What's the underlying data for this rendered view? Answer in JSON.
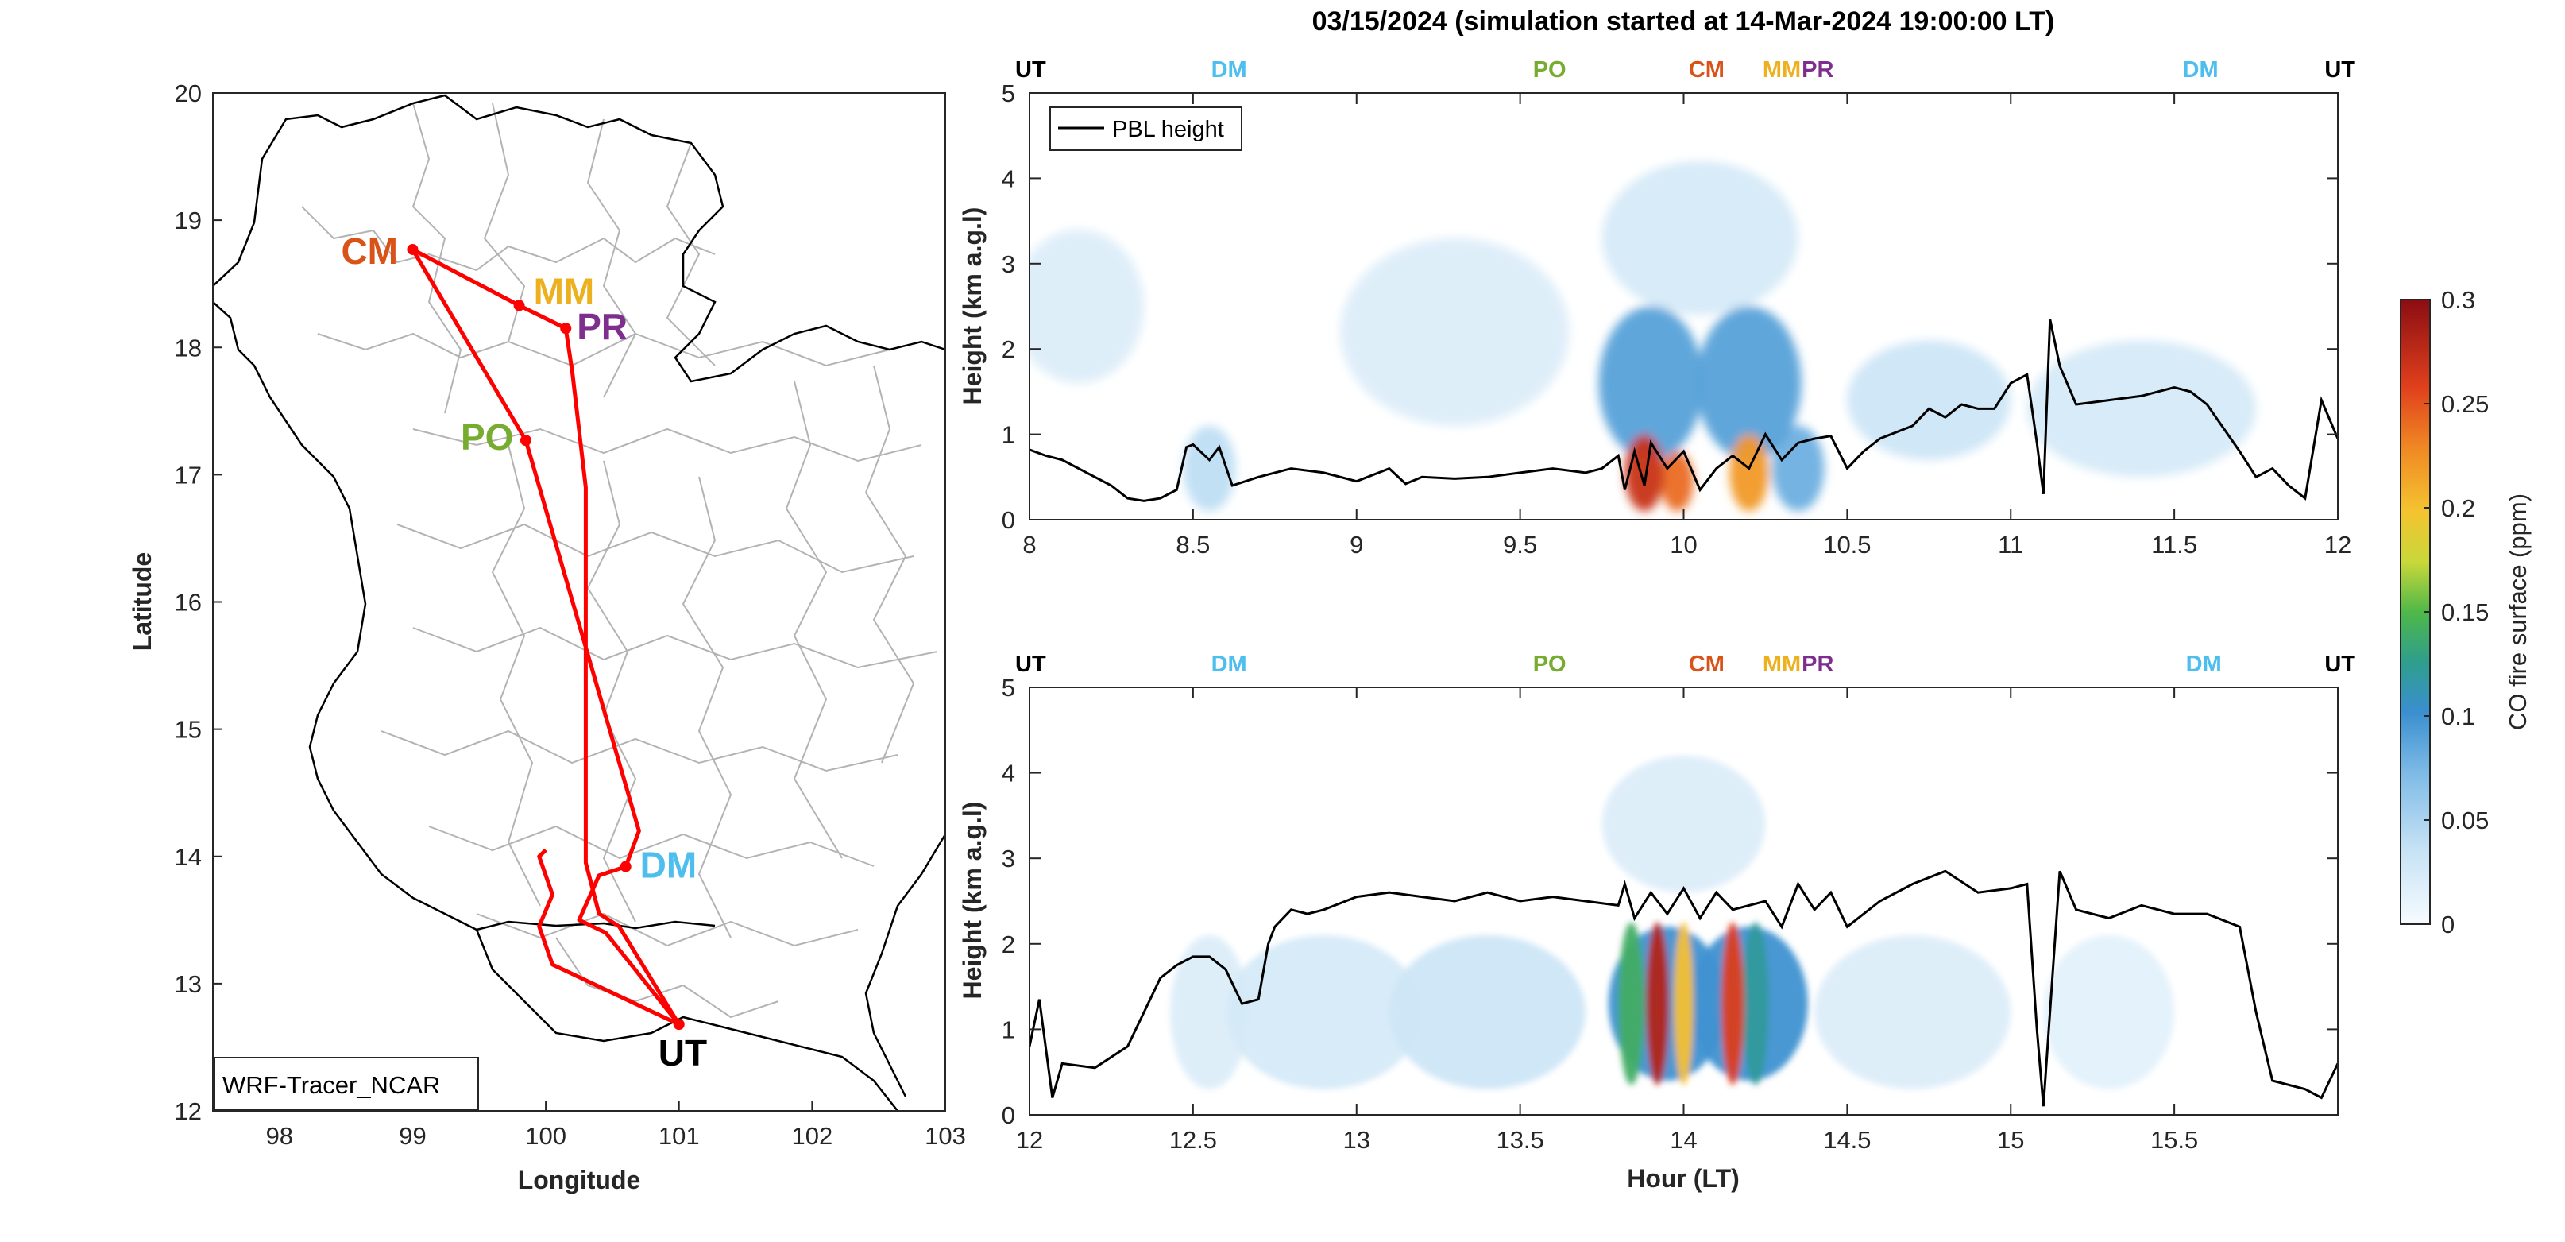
{
  "figure": {
    "title": "03/15/2024 (simulation started at 14-Mar-2024 19:00:00 LT)"
  },
  "colors": {
    "CM": "#d95319",
    "MM": "#edb120",
    "PR": "#7e2f8e",
    "PO": "#77ac30",
    "DM": "#4dbeee",
    "UT": "#000000",
    "route": "#ff0000",
    "borders": "#b3b3b3",
    "coast": "#000000",
    "pbl": "#000000"
  },
  "map": {
    "xlabel": "Longitude",
    "ylabel": "Latitude",
    "xlim": [
      97.5,
      103
    ],
    "ylim": [
      12,
      20
    ],
    "xticks": [
      "98",
      "99",
      "100",
      "101",
      "102",
      "103"
    ],
    "yticks": [
      "12",
      "13",
      "14",
      "15",
      "16",
      "17",
      "18",
      "19",
      "20"
    ],
    "legend_text": "WRF-Tracer_NCAR",
    "sites": [
      {
        "label": "CM",
        "lon": 99.0,
        "lat": 18.77
      },
      {
        "label": "MM",
        "lon": 99.8,
        "lat": 18.33
      },
      {
        "label": "PR",
        "lon": 100.15,
        "lat": 18.15
      },
      {
        "label": "PO",
        "lon": 99.85,
        "lat": 17.27
      },
      {
        "label": "DM",
        "lon": 100.6,
        "lat": 13.92
      },
      {
        "label": "UT",
        "lon": 101.0,
        "lat": 12.68
      }
    ]
  },
  "colorbar": {
    "label": "CO fire surface (ppm)",
    "ticks": [
      "0",
      "0.05",
      "0.1",
      "0.15",
      "0.2",
      "0.25",
      "0.3"
    ],
    "range": [
      0,
      0.3
    ]
  },
  "chart_data": [
    {
      "type": "heatmap",
      "title": "03/15/2024 (simulation started at 14-Mar-2024 19:00:00 LT)",
      "xlabel": "",
      "ylabel": "Height (km a.g.l)",
      "xlim": [
        8,
        12
      ],
      "ylim": [
        0,
        5
      ],
      "xticks": [
        "8",
        "8.5",
        "9",
        "9.5",
        "10",
        "10.5",
        "11",
        "11.5",
        "12"
      ],
      "yticks": [
        "0",
        "1",
        "2",
        "3",
        "4",
        "5"
      ],
      "legend": "PBL height",
      "legend_position": "top-left",
      "site_markers": [
        {
          "label": "UT",
          "x": 8.0
        },
        {
          "label": "DM",
          "x": 8.61
        },
        {
          "label": "PO",
          "x": 9.59
        },
        {
          "label": "CM",
          "x": 10.07
        },
        {
          "label": "MM",
          "x": 10.3
        },
        {
          "label": "PR",
          "x": 10.41
        },
        {
          "label": "DM",
          "x": 11.58
        },
        {
          "label": "UT",
          "x": 12.0
        }
      ],
      "pbl_height": {
        "x": [
          8.0,
          8.05,
          8.1,
          8.15,
          8.2,
          8.25,
          8.3,
          8.35,
          8.4,
          8.45,
          8.48,
          8.5,
          8.55,
          8.58,
          8.62,
          8.7,
          8.8,
          8.9,
          9.0,
          9.1,
          9.15,
          9.2,
          9.3,
          9.4,
          9.5,
          9.6,
          9.7,
          9.75,
          9.8,
          9.82,
          9.85,
          9.88,
          9.9,
          9.95,
          10.0,
          10.05,
          10.1,
          10.15,
          10.2,
          10.25,
          10.3,
          10.35,
          10.4,
          10.45,
          10.5,
          10.55,
          10.6,
          10.7,
          10.75,
          10.8,
          10.85,
          10.9,
          10.95,
          11.0,
          11.05,
          11.08,
          11.1,
          11.12,
          11.15,
          11.2,
          11.3,
          11.4,
          11.5,
          11.55,
          11.6,
          11.7,
          11.75,
          11.8,
          11.85,
          11.9,
          11.95,
          12.0
        ],
        "y": [
          0.82,
          0.75,
          0.7,
          0.6,
          0.5,
          0.4,
          0.25,
          0.22,
          0.25,
          0.35,
          0.85,
          0.88,
          0.7,
          0.85,
          0.4,
          0.5,
          0.6,
          0.55,
          0.45,
          0.6,
          0.42,
          0.5,
          0.48,
          0.5,
          0.55,
          0.6,
          0.55,
          0.6,
          0.75,
          0.35,
          0.8,
          0.4,
          0.9,
          0.6,
          0.8,
          0.35,
          0.6,
          0.75,
          0.6,
          1.0,
          0.7,
          0.9,
          0.95,
          0.98,
          0.6,
          0.8,
          0.95,
          1.1,
          1.3,
          1.2,
          1.35,
          1.3,
          1.3,
          1.6,
          1.7,
          0.9,
          0.3,
          2.35,
          1.8,
          1.35,
          1.4,
          1.45,
          1.55,
          1.5,
          1.35,
          0.8,
          0.5,
          0.6,
          0.4,
          0.25,
          1.4,
          0.95
        ]
      },
      "concentration_blobs": [
        {
          "x": 8.15,
          "y": 2.5,
          "sx": 0.2,
          "sy": 0.9,
          "v": 0.02
        },
        {
          "x": 8.55,
          "y": 0.6,
          "sx": 0.08,
          "sy": 0.5,
          "v": 0.04
        },
        {
          "x": 9.3,
          "y": 2.2,
          "sx": 0.35,
          "sy": 1.1,
          "v": 0.02
        },
        {
          "x": 9.9,
          "y": 1.6,
          "sx": 0.16,
          "sy": 0.9,
          "v": 0.09
        },
        {
          "x": 10.2,
          "y": 1.6,
          "sx": 0.16,
          "sy": 0.9,
          "v": 0.09
        },
        {
          "x": 10.05,
          "y": 3.3,
          "sx": 0.3,
          "sy": 0.9,
          "v": 0.025
        },
        {
          "x": 9.88,
          "y": 0.55,
          "sx": 0.06,
          "sy": 0.45,
          "v": 0.27
        },
        {
          "x": 9.98,
          "y": 0.45,
          "sx": 0.05,
          "sy": 0.35,
          "v": 0.24
        },
        {
          "x": 10.2,
          "y": 0.55,
          "sx": 0.06,
          "sy": 0.45,
          "v": 0.22
        },
        {
          "x": 10.35,
          "y": 0.6,
          "sx": 0.08,
          "sy": 0.5,
          "v": 0.08
        },
        {
          "x": 10.75,
          "y": 1.4,
          "sx": 0.25,
          "sy": 0.7,
          "v": 0.03
        },
        {
          "x": 11.4,
          "y": 1.3,
          "sx": 0.35,
          "sy": 0.8,
          "v": 0.025
        }
      ]
    },
    {
      "type": "heatmap",
      "xlabel": "Hour (LT)",
      "ylabel": "Height (km a.g.l)",
      "xlim": [
        12,
        16
      ],
      "ylim": [
        0,
        5
      ],
      "xticks": [
        "12",
        "12.5",
        "13",
        "13.5",
        "14",
        "14.5",
        "15",
        "15.5"
      ],
      "yticks": [
        "0",
        "1",
        "2",
        "3",
        "4",
        "5"
      ],
      "site_markers": [
        {
          "label": "UT",
          "x": 12.0
        },
        {
          "label": "DM",
          "x": 12.61
        },
        {
          "label": "PO",
          "x": 13.59
        },
        {
          "label": "CM",
          "x": 14.07
        },
        {
          "label": "MM",
          "x": 14.3
        },
        {
          "label": "PR",
          "x": 14.41
        },
        {
          "label": "DM",
          "x": 15.59
        },
        {
          "label": "UT",
          "x": 16.0
        }
      ],
      "pbl_height": {
        "x": [
          12.0,
          12.03,
          12.07,
          12.1,
          12.2,
          12.3,
          12.35,
          12.4,
          12.45,
          12.5,
          12.55,
          12.6,
          12.65,
          12.7,
          12.73,
          12.75,
          12.8,
          12.85,
          12.9,
          13.0,
          13.1,
          13.2,
          13.3,
          13.4,
          13.5,
          13.6,
          13.7,
          13.8,
          13.82,
          13.85,
          13.9,
          13.95,
          14.0,
          14.05,
          14.1,
          14.15,
          14.2,
          14.25,
          14.3,
          14.35,
          14.4,
          14.45,
          14.5,
          14.6,
          14.7,
          14.8,
          14.9,
          15.0,
          15.05,
          15.08,
          15.1,
          15.15,
          15.2,
          15.3,
          15.4,
          15.5,
          15.6,
          15.7,
          15.75,
          15.8,
          15.9,
          15.95,
          16.0
        ],
        "y": [
          0.8,
          1.35,
          0.2,
          0.6,
          0.55,
          0.8,
          1.2,
          1.6,
          1.75,
          1.85,
          1.85,
          1.7,
          1.3,
          1.35,
          2.0,
          2.2,
          2.4,
          2.35,
          2.4,
          2.55,
          2.6,
          2.55,
          2.5,
          2.6,
          2.5,
          2.55,
          2.5,
          2.45,
          2.7,
          2.3,
          2.6,
          2.35,
          2.65,
          2.3,
          2.6,
          2.4,
          2.45,
          2.5,
          2.2,
          2.7,
          2.4,
          2.6,
          2.2,
          2.5,
          2.7,
          2.85,
          2.6,
          2.65,
          2.7,
          1.0,
          0.1,
          2.85,
          2.4,
          2.3,
          2.45,
          2.35,
          2.35,
          2.2,
          1.2,
          0.4,
          0.3,
          0.2,
          0.6
        ]
      },
      "concentration_blobs": [
        {
          "x": 12.55,
          "y": 1.2,
          "sx": 0.12,
          "sy": 0.9,
          "v": 0.02
        },
        {
          "x": 12.9,
          "y": 1.2,
          "sx": 0.3,
          "sy": 0.9,
          "v": 0.025
        },
        {
          "x": 13.4,
          "y": 1.2,
          "sx": 0.3,
          "sy": 0.9,
          "v": 0.03
        },
        {
          "x": 13.95,
          "y": 1.3,
          "sx": 0.18,
          "sy": 0.9,
          "v": 0.1
        },
        {
          "x": 14.2,
          "y": 1.3,
          "sx": 0.18,
          "sy": 0.9,
          "v": 0.1
        },
        {
          "x": 14.0,
          "y": 3.4,
          "sx": 0.25,
          "sy": 0.8,
          "v": 0.02
        },
        {
          "x": 13.84,
          "y": 1.3,
          "sx": 0.04,
          "sy": 0.95,
          "v": 0.14
        },
        {
          "x": 13.92,
          "y": 1.3,
          "sx": 0.035,
          "sy": 0.95,
          "v": 0.28
        },
        {
          "x": 14.0,
          "y": 1.3,
          "sx": 0.03,
          "sy": 0.95,
          "v": 0.2
        },
        {
          "x": 14.15,
          "y": 1.3,
          "sx": 0.035,
          "sy": 0.95,
          "v": 0.26
        },
        {
          "x": 14.22,
          "y": 1.3,
          "sx": 0.04,
          "sy": 0.95,
          "v": 0.12
        },
        {
          "x": 14.7,
          "y": 1.2,
          "sx": 0.3,
          "sy": 0.9,
          "v": 0.02
        },
        {
          "x": 15.3,
          "y": 1.2,
          "sx": 0.2,
          "sy": 0.9,
          "v": 0.015
        }
      ]
    }
  ]
}
